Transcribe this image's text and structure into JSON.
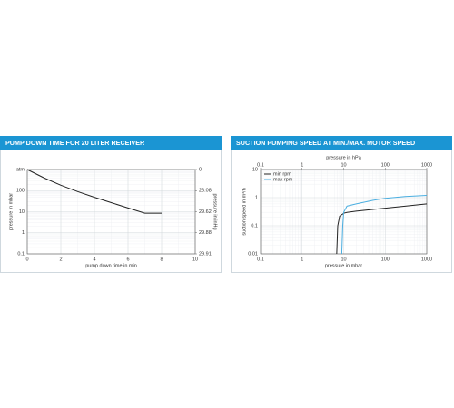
{
  "chart_data": [
    {
      "type": "line",
      "title": "PUMP DOWN TIME FOR 20 LITER RECEIVER",
      "xlabel": "pump down time in min",
      "ylabel": "pressure in mbar",
      "y2label": "pressure in inHg",
      "x": [
        0,
        1,
        2,
        3,
        4,
        5,
        6,
        7,
        8
      ],
      "values": [
        1000,
        400,
        180,
        90,
        48,
        27,
        15,
        8.5,
        8.5
      ],
      "color": "#222222",
      "xlim": [
        0,
        10
      ],
      "xticks": [
        0,
        2,
        4,
        6,
        8,
        10
      ],
      "ylim": [
        0.1,
        1000
      ],
      "yscale": "log",
      "yticks": [
        0.1,
        1,
        10,
        100,
        {
          "value": 1000,
          "label": "atm"
        }
      ],
      "y2lim": [
        0.1,
        1000
      ],
      "y2ticks": [
        {
          "value": 1000,
          "label": "0"
        },
        {
          "value": 100,
          "label": "26.08"
        },
        {
          "value": 10,
          "label": "29.62"
        },
        {
          "value": 1,
          "label": "29.88"
        },
        {
          "value": 0.1,
          "label": "29.91"
        }
      ],
      "grid": true
    },
    {
      "type": "line",
      "title": "SUCTION PUMPING SPEED AT MIN./MAX. MOTOR SPEED",
      "xlabel": "pressure in mbar",
      "x2label": "pressure in hPa",
      "ylabel": "suction speed in m³/h",
      "x": [
        6.8,
        7.2,
        8,
        9,
        9.5,
        10,
        12,
        20,
        50,
        100,
        300,
        1000
      ],
      "series": [
        {
          "name": "min rpm",
          "color": "#222222",
          "values": [
            0.01,
            0.1,
            0.22,
            0.25,
            0.26,
            0.28,
            0.3,
            0.33,
            0.38,
            0.42,
            0.5,
            0.6
          ]
        },
        {
          "name": "max rpm",
          "color": "#4aaee0",
          "values": [
            null,
            null,
            null,
            0.01,
            0.1,
            0.3,
            0.5,
            0.6,
            0.8,
            0.95,
            1.1,
            1.2
          ]
        }
      ],
      "xlim": [
        0.1,
        1000
      ],
      "xscale": "log",
      "xticks": [
        0.1,
        1,
        10,
        100,
        1000
      ],
      "x2ticks": [
        0.1,
        1,
        10,
        100,
        1000
      ],
      "ylim": [
        0.01,
        10
      ],
      "yscale": "log",
      "yticks": [
        0.01,
        0.1,
        1,
        10
      ],
      "grid": true,
      "legend": "upper left"
    }
  ]
}
